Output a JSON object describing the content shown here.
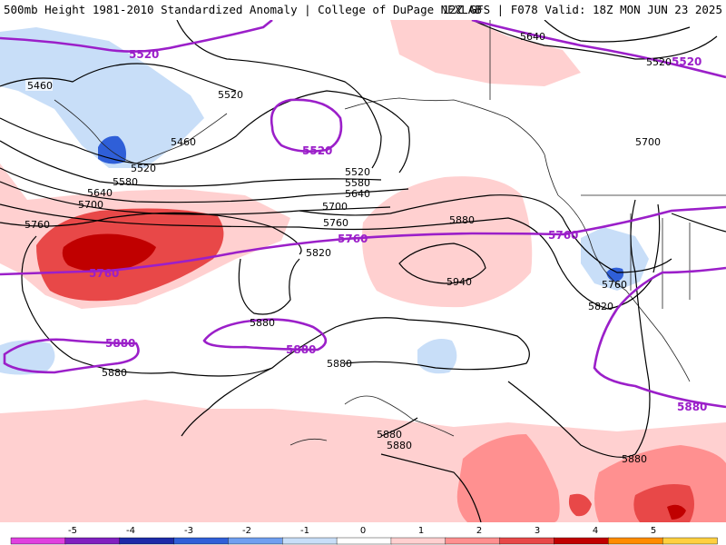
{
  "header": {
    "title_left": "500mb Height 1981-2010 Standardized Anomaly | College of DuPage NEXLAB",
    "title_right": "12Z GFS | F078 Valid: 18Z MON JUN 23 2025"
  },
  "contour_labels": {
    "black": [
      "5460",
      "5460",
      "5520",
      "5520",
      "5520",
      "5580",
      "5580",
      "5640",
      "5640",
      "5640",
      "5700",
      "5700",
      "5700",
      "5760",
      "5760",
      "5760",
      "5820",
      "5820",
      "5880",
      "5880",
      "5880",
      "5880",
      "5880",
      "5880",
      "5940"
    ],
    "purple": [
      "5520",
      "5520",
      "5520",
      "5760",
      "5760",
      "5760",
      "5880",
      "5880",
      "5880"
    ]
  },
  "colorbar": {
    "ticks": [
      "-5",
      "-4",
      "-3",
      "-2",
      "-1",
      "0",
      "1",
      "2",
      "3",
      "4",
      "5"
    ],
    "colors": [
      "#e040e0",
      "#8020c0",
      "#1c2aa8",
      "#2f5fd8",
      "#6f9ff0",
      "#c8def8",
      "#ffffff",
      "#ffd0d0",
      "#ff9090",
      "#e84848",
      "#c00000",
      "#ff8c00",
      "#ffd040"
    ]
  }
}
